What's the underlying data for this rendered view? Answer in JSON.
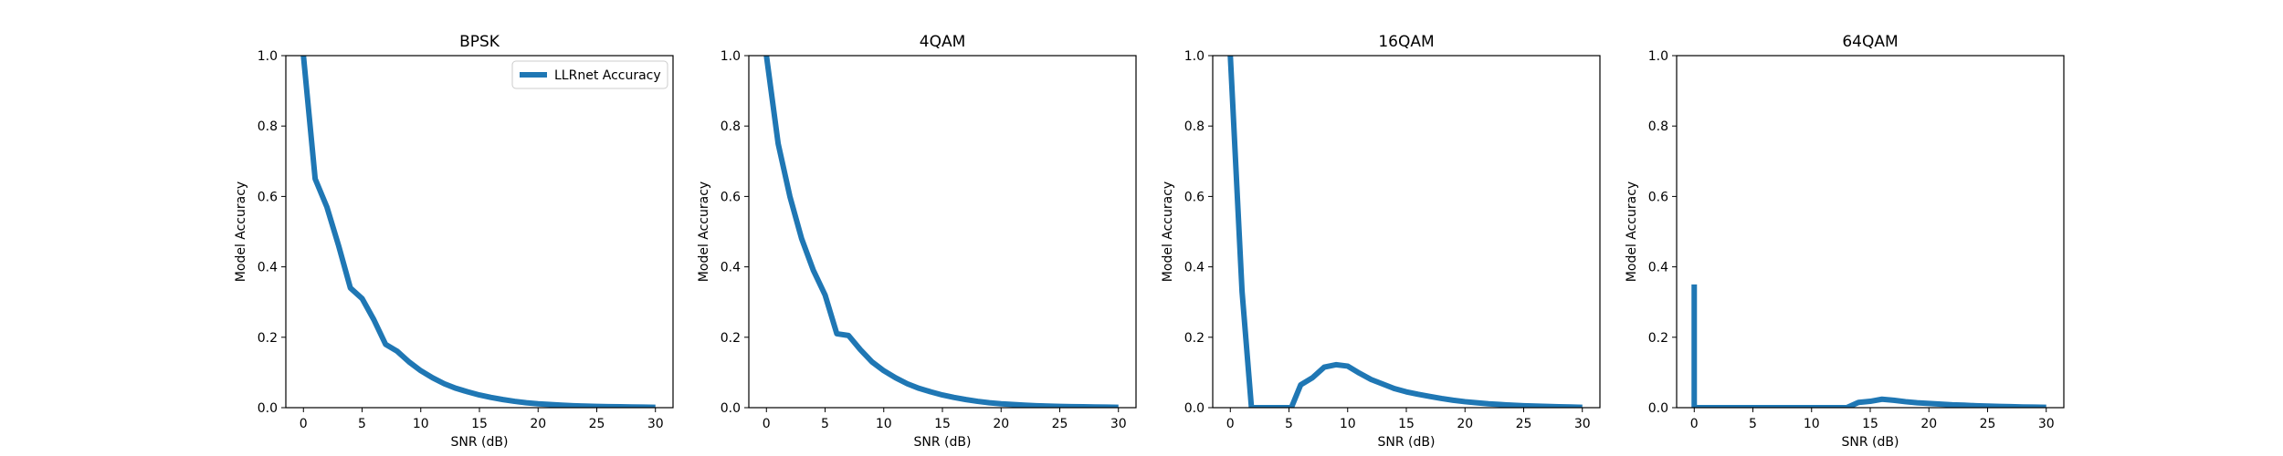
{
  "chart_data": [
    {
      "type": "line",
      "title": "BPSK",
      "xlabel": "SNR (dB)",
      "ylabel": "Model Accuracy",
      "xlim": [
        -1.5,
        31.5
      ],
      "ylim": [
        0,
        1
      ],
      "xticks": [
        0,
        5,
        10,
        15,
        20,
        25,
        30
      ],
      "yticks": [
        0.0,
        0.2,
        0.4,
        0.6,
        0.8,
        1.0
      ],
      "grid": false,
      "legend": "top-right",
      "series": [
        {
          "name": "LLRnet Accuracy",
          "color": "#1f77b4",
          "x": [
            0,
            1,
            2,
            3,
            4,
            5,
            6,
            7,
            8,
            9,
            10,
            11,
            12,
            13,
            14,
            15,
            16,
            17,
            18,
            19,
            20,
            21,
            22,
            23,
            24,
            25,
            26,
            27,
            28,
            29,
            30
          ],
          "y": [
            1.0,
            0.65,
            0.57,
            0.46,
            0.34,
            0.31,
            0.25,
            0.18,
            0.16,
            0.13,
            0.105,
            0.085,
            0.068,
            0.055,
            0.045,
            0.036,
            0.029,
            0.023,
            0.018,
            0.014,
            0.011,
            0.009,
            0.007,
            0.0055,
            0.0045,
            0.0035,
            0.003,
            0.0025,
            0.002,
            0.0015,
            0.001
          ]
        }
      ]
    },
    {
      "type": "line",
      "title": "4QAM",
      "xlabel": "SNR (dB)",
      "ylabel": "Model Accuracy",
      "xlim": [
        -1.5,
        31.5
      ],
      "ylim": [
        0,
        1
      ],
      "xticks": [
        0,
        5,
        10,
        15,
        20,
        25,
        30
      ],
      "yticks": [
        0.0,
        0.2,
        0.4,
        0.6,
        0.8,
        1.0
      ],
      "grid": false,
      "series": [
        {
          "color": "#1f77b4",
          "x": [
            0,
            1,
            2,
            3,
            4,
            5,
            6,
            7,
            8,
            9,
            10,
            11,
            12,
            13,
            14,
            15,
            16,
            17,
            18,
            19,
            20,
            21,
            22,
            23,
            24,
            25,
            26,
            27,
            28,
            29,
            30
          ],
          "y": [
            1.0,
            0.75,
            0.6,
            0.48,
            0.39,
            0.32,
            0.21,
            0.205,
            0.165,
            0.13,
            0.105,
            0.085,
            0.068,
            0.055,
            0.045,
            0.036,
            0.029,
            0.023,
            0.018,
            0.014,
            0.011,
            0.009,
            0.007,
            0.0055,
            0.0045,
            0.0035,
            0.003,
            0.0025,
            0.002,
            0.0015,
            0.001
          ]
        }
      ]
    },
    {
      "type": "line",
      "title": "16QAM",
      "xlabel": "SNR (dB)",
      "ylabel": "Model Accuracy",
      "xlim": [
        -1.5,
        31.5
      ],
      "ylim": [
        0,
        1
      ],
      "xticks": [
        0,
        5,
        10,
        15,
        20,
        25,
        30
      ],
      "yticks": [
        0.0,
        0.2,
        0.4,
        0.6,
        0.8,
        1.0
      ],
      "grid": false,
      "series": [
        {
          "color": "#1f77b4",
          "x": [
            0,
            1,
            1.8,
            5.2,
            6,
            7,
            8,
            9,
            10,
            11,
            12,
            13,
            14,
            15,
            16,
            17,
            18,
            19,
            20,
            21,
            22,
            23,
            24,
            25,
            26,
            27,
            28,
            29,
            30
          ],
          "y": [
            1.0,
            0.33,
            0.0,
            0.0,
            0.065,
            0.085,
            0.115,
            0.122,
            0.118,
            0.098,
            0.08,
            0.067,
            0.054,
            0.045,
            0.038,
            0.032,
            0.026,
            0.021,
            0.017,
            0.014,
            0.011,
            0.009,
            0.007,
            0.0055,
            0.0045,
            0.0035,
            0.0025,
            0.0018,
            0.001
          ]
        }
      ]
    },
    {
      "type": "line",
      "title": "64QAM",
      "xlabel": "SNR (dB)",
      "ylabel": "Model Accuracy",
      "xlim": [
        -1.5,
        31.5
      ],
      "ylim": [
        0,
        1
      ],
      "xticks": [
        0,
        5,
        10,
        15,
        20,
        25,
        30
      ],
      "yticks": [
        0.0,
        0.2,
        0.4,
        0.6,
        0.8,
        1.0
      ],
      "grid": false,
      "series": [
        {
          "color": "#1f77b4",
          "x": [
            0,
            0,
            0.05,
            13,
            14,
            15,
            16,
            17,
            18,
            19,
            20,
            21,
            22,
            23,
            24,
            25,
            26,
            27,
            28,
            29,
            30
          ],
          "y": [
            0.35,
            0.0,
            0.0,
            0.0,
            0.015,
            0.018,
            0.024,
            0.021,
            0.017,
            0.014,
            0.012,
            0.01,
            0.008,
            0.007,
            0.0055,
            0.0045,
            0.0035,
            0.0028,
            0.002,
            0.0015,
            0.001
          ]
        }
      ]
    }
  ]
}
